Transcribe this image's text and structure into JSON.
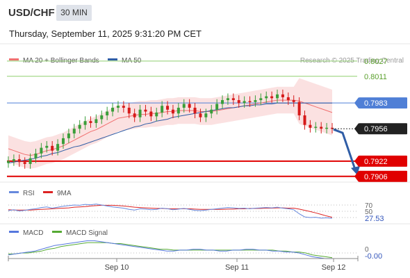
{
  "header": {
    "symbol": "USD/CHF",
    "timeframe": "30 MIN",
    "datetime": "Thursday, September 11, 2025 9:31:20 PM CET"
  },
  "legend": {
    "ma20": "MA 20 + Bollinger Bands",
    "ma50": "MA 50",
    "copyright": "Research © 2025 Trading Central",
    "rsi": "RSI",
    "rsi_ma": "9MA",
    "macd": "MACD",
    "macd_signal": "MACD Signal"
  },
  "colors": {
    "candle_up": "#3a9e3a",
    "candle_down": "#d61a1a",
    "ma20": "#f07070",
    "ma50": "#2f5da6",
    "bollinger_fill": "#f8c8c8",
    "resistance": "#8fcf6f",
    "pivot": "#4f7fd6",
    "support": "#e00000",
    "current_price_tag": "#222222",
    "arrow": "#2f5da6",
    "rsi_line": "#6688dd",
    "rsi_ma_line": "#dd2222",
    "macd_line": "#5577dd",
    "macd_signal_line": "#55aa33"
  },
  "chart_data": [
    {
      "type": "candlestick",
      "title": "USD/CHF 30 MIN",
      "x_ticks": [
        "Sep 10",
        "Sep 11",
        "Sep 12"
      ],
      "ylim": [
        0.79,
        0.804
      ],
      "levels": [
        {
          "label": "0.8027",
          "value": 0.8027,
          "kind": "resistance"
        },
        {
          "label": "0.8011",
          "value": 0.8011,
          "kind": "resistance"
        },
        {
          "label": "0.7983",
          "value": 0.7983,
          "kind": "pivot"
        },
        {
          "label": "0.7922",
          "value": 0.7922,
          "kind": "support"
        },
        {
          "label": "0.7906",
          "value": 0.7906,
          "kind": "support"
        }
      ],
      "current_price": {
        "label": "0.7956",
        "value": 0.7956
      },
      "close_series": [
        0.7922,
        0.7924,
        0.7921,
        0.7919,
        0.7925,
        0.793,
        0.7936,
        0.7938,
        0.7933,
        0.794,
        0.7946,
        0.7951,
        0.7956,
        0.796,
        0.7964,
        0.7962,
        0.7966,
        0.797,
        0.7974,
        0.7978,
        0.798,
        0.7978,
        0.7972,
        0.7968,
        0.7976,
        0.7974,
        0.7969,
        0.7973,
        0.798,
        0.7976,
        0.7972,
        0.7978,
        0.7982,
        0.7978,
        0.7972,
        0.7968,
        0.7972,
        0.7976,
        0.7982,
        0.7986,
        0.7988,
        0.7986,
        0.7983,
        0.7985,
        0.7984,
        0.7986,
        0.7988,
        0.799,
        0.7988,
        0.7992,
        0.7989,
        0.7986,
        0.7984,
        0.797,
        0.796,
        0.7957,
        0.7958,
        0.7956,
        0.7957,
        0.7956
      ],
      "ma20_series": [
        0.7935,
        0.7933,
        0.7931,
        0.7929,
        0.7928,
        0.7929,
        0.7931,
        0.7933,
        0.7934,
        0.7936,
        0.7938,
        0.7941,
        0.7944,
        0.7947,
        0.795,
        0.7953,
        0.7955,
        0.7958,
        0.7961,
        0.7964,
        0.7967,
        0.7968,
        0.7969,
        0.797,
        0.7971,
        0.7971,
        0.7972,
        0.7972,
        0.7973,
        0.7974,
        0.7974,
        0.7975,
        0.7975,
        0.7975,
        0.7975,
        0.7974,
        0.7974,
        0.7974,
        0.7975,
        0.7976,
        0.7977,
        0.7978,
        0.7979,
        0.798,
        0.7981,
        0.7982,
        0.7983,
        0.7984,
        0.7985,
        0.7986,
        0.7986,
        0.7986,
        0.7986,
        0.7985,
        0.7983,
        0.7981,
        0.7979,
        0.7977,
        0.7975,
        0.7973
      ],
      "ma50_series": [
        0.792,
        0.7921,
        0.7922,
        0.7923,
        0.7924,
        0.7925,
        0.7927,
        0.7928,
        0.793,
        0.7931,
        0.7933,
        0.7935,
        0.7937,
        0.7938,
        0.794,
        0.7942,
        0.7944,
        0.7946,
        0.7948,
        0.795,
        0.7952,
        0.7954,
        0.7956,
        0.7958,
        0.7959,
        0.7961,
        0.7962,
        0.7964,
        0.7965,
        0.7966,
        0.7968,
        0.7969,
        0.797,
        0.7971,
        0.7972,
        0.7973,
        0.7974,
        0.7975,
        0.7976,
        0.7977,
        0.7978,
        0.7978,
        0.7979,
        0.798,
        0.798,
        0.7981,
        0.7981,
        0.7982,
        0.7982,
        0.7983,
        0.7983,
        0.7983,
        0.7983,
        0.7983,
        0.7983,
        0.7983,
        0.7983,
        0.7983,
        0.7983,
        0.7983
      ]
    },
    {
      "type": "line",
      "title": "RSI",
      "y_ticks": [
        "70",
        "50"
      ],
      "current_value": "27.53",
      "series": [
        {
          "name": "RSI",
          "values": [
            52,
            55,
            51,
            53,
            56,
            58,
            62,
            64,
            60,
            63,
            66,
            68,
            70,
            69,
            72,
            71,
            73,
            70,
            67,
            64,
            62,
            60,
            56,
            54,
            58,
            57,
            55,
            56,
            60,
            58,
            55,
            57,
            59,
            56,
            53,
            52,
            54,
            56,
            58,
            60,
            62,
            61,
            59,
            60,
            58,
            60,
            61,
            62,
            61,
            63,
            60,
            58,
            55,
            42,
            32,
            30,
            31,
            28,
            29,
            27.53
          ]
        },
        {
          "name": "9MA",
          "values": [
            55,
            54,
            54,
            54,
            54,
            55,
            56,
            57,
            58,
            59,
            60,
            61,
            63,
            64,
            65,
            67,
            68,
            69,
            69,
            69,
            68,
            67,
            65,
            63,
            62,
            61,
            60,
            59,
            59,
            58,
            58,
            58,
            58,
            58,
            57,
            56,
            56,
            56,
            56,
            56,
            57,
            57,
            58,
            58,
            59,
            59,
            59,
            60,
            60,
            61,
            61,
            60,
            60,
            57,
            53,
            49,
            45,
            40,
            35,
            31
          ]
        }
      ]
    },
    {
      "type": "line",
      "title": "MACD",
      "y_ticks": [
        "0"
      ],
      "current_value": "-0.00",
      "series": [
        {
          "name": "MACD",
          "values": [
            -0.0002,
            -0.0001,
            0.0,
            0.0001,
            0.0002,
            0.0004,
            0.0006,
            0.0008,
            0.0009,
            0.001,
            0.0011,
            0.0012,
            0.0013,
            0.0013,
            0.0012,
            0.0011,
            0.001,
            0.0009,
            0.0008,
            0.0007,
            0.0006,
            0.0005,
            0.0004,
            0.0003,
            0.0002,
            0.0002,
            0.0003,
            0.0003,
            0.0004,
            0.0004,
            0.0003,
            0.0003,
            0.0002,
            0.0002,
            0.0003,
            0.0003,
            0.0004,
            0.0004,
            0.0003,
            0.0003,
            0.0002,
            0.0002,
            0.0001,
            0.0001,
            0.0,
            -0.0002,
            -0.0004,
            -0.0005,
            -0.0006,
            -0.0006
          ]
        },
        {
          "name": "MACD Signal",
          "values": [
            -0.0001,
            -0.0001,
            0.0,
            0.0,
            0.0001,
            0.0002,
            0.0004,
            0.0005,
            0.0007,
            0.0008,
            0.0009,
            0.001,
            0.0011,
            0.0011,
            0.0011,
            0.0011,
            0.001,
            0.001,
            0.0009,
            0.0008,
            0.0007,
            0.0006,
            0.0005,
            0.0004,
            0.0004,
            0.0003,
            0.0003,
            0.0003,
            0.0003,
            0.0003,
            0.0003,
            0.0003,
            0.0003,
            0.0003,
            0.0003,
            0.0003,
            0.0003,
            0.0003,
            0.0003,
            0.0003,
            0.0003,
            0.0002,
            0.0002,
            0.0001,
            0.0001,
            0.0,
            -0.0002,
            -0.0003,
            -0.0004,
            -0.0005
          ]
        }
      ]
    }
  ]
}
